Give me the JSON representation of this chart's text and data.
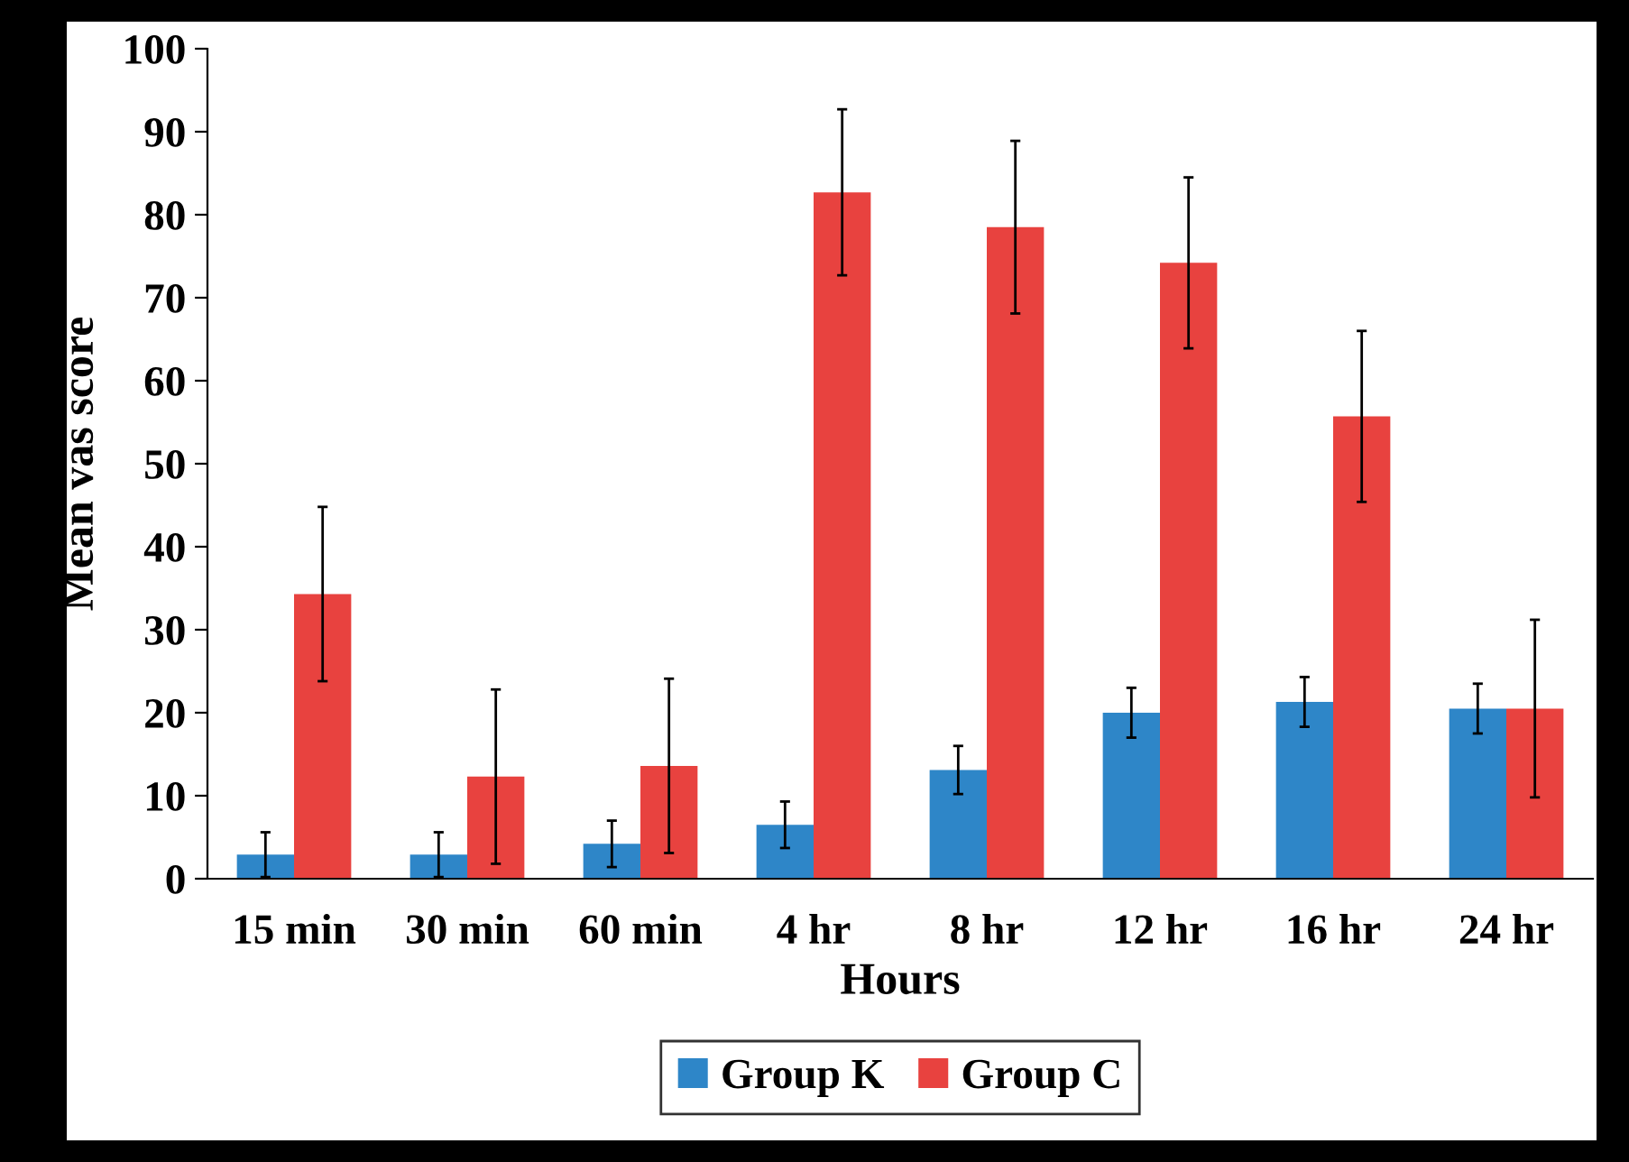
{
  "chart_data": {
    "type": "bar",
    "xlabel": "Hours",
    "ylabel": "Mean vas score",
    "categories": [
      "15 min",
      "30 min",
      "60 min",
      "4 hr",
      "8 hr",
      "12 hr",
      "16 hr",
      "24 hr"
    ],
    "series": [
      {
        "name": "Group K",
        "color": "#2e86c8",
        "values": [
          2.9,
          2.9,
          4.2,
          6.5,
          13.1,
          20.0,
          21.3,
          20.5
        ],
        "errors": [
          2.7,
          2.7,
          2.8,
          2.8,
          2.9,
          3.0,
          3.0,
          3.0
        ]
      },
      {
        "name": "Group C",
        "color": "#e8423f",
        "values": [
          34.3,
          12.3,
          13.6,
          82.7,
          78.5,
          74.2,
          55.7,
          20.5
        ],
        "errors": [
          10.5,
          10.5,
          10.5,
          10.0,
          10.4,
          10.3,
          10.3,
          10.7
        ]
      }
    ],
    "ylim": [
      0,
      100
    ],
    "yticks": [
      0,
      10,
      20,
      30,
      40,
      50,
      60,
      70,
      80,
      90,
      100
    ],
    "grid": false,
    "legend": "bottom"
  }
}
